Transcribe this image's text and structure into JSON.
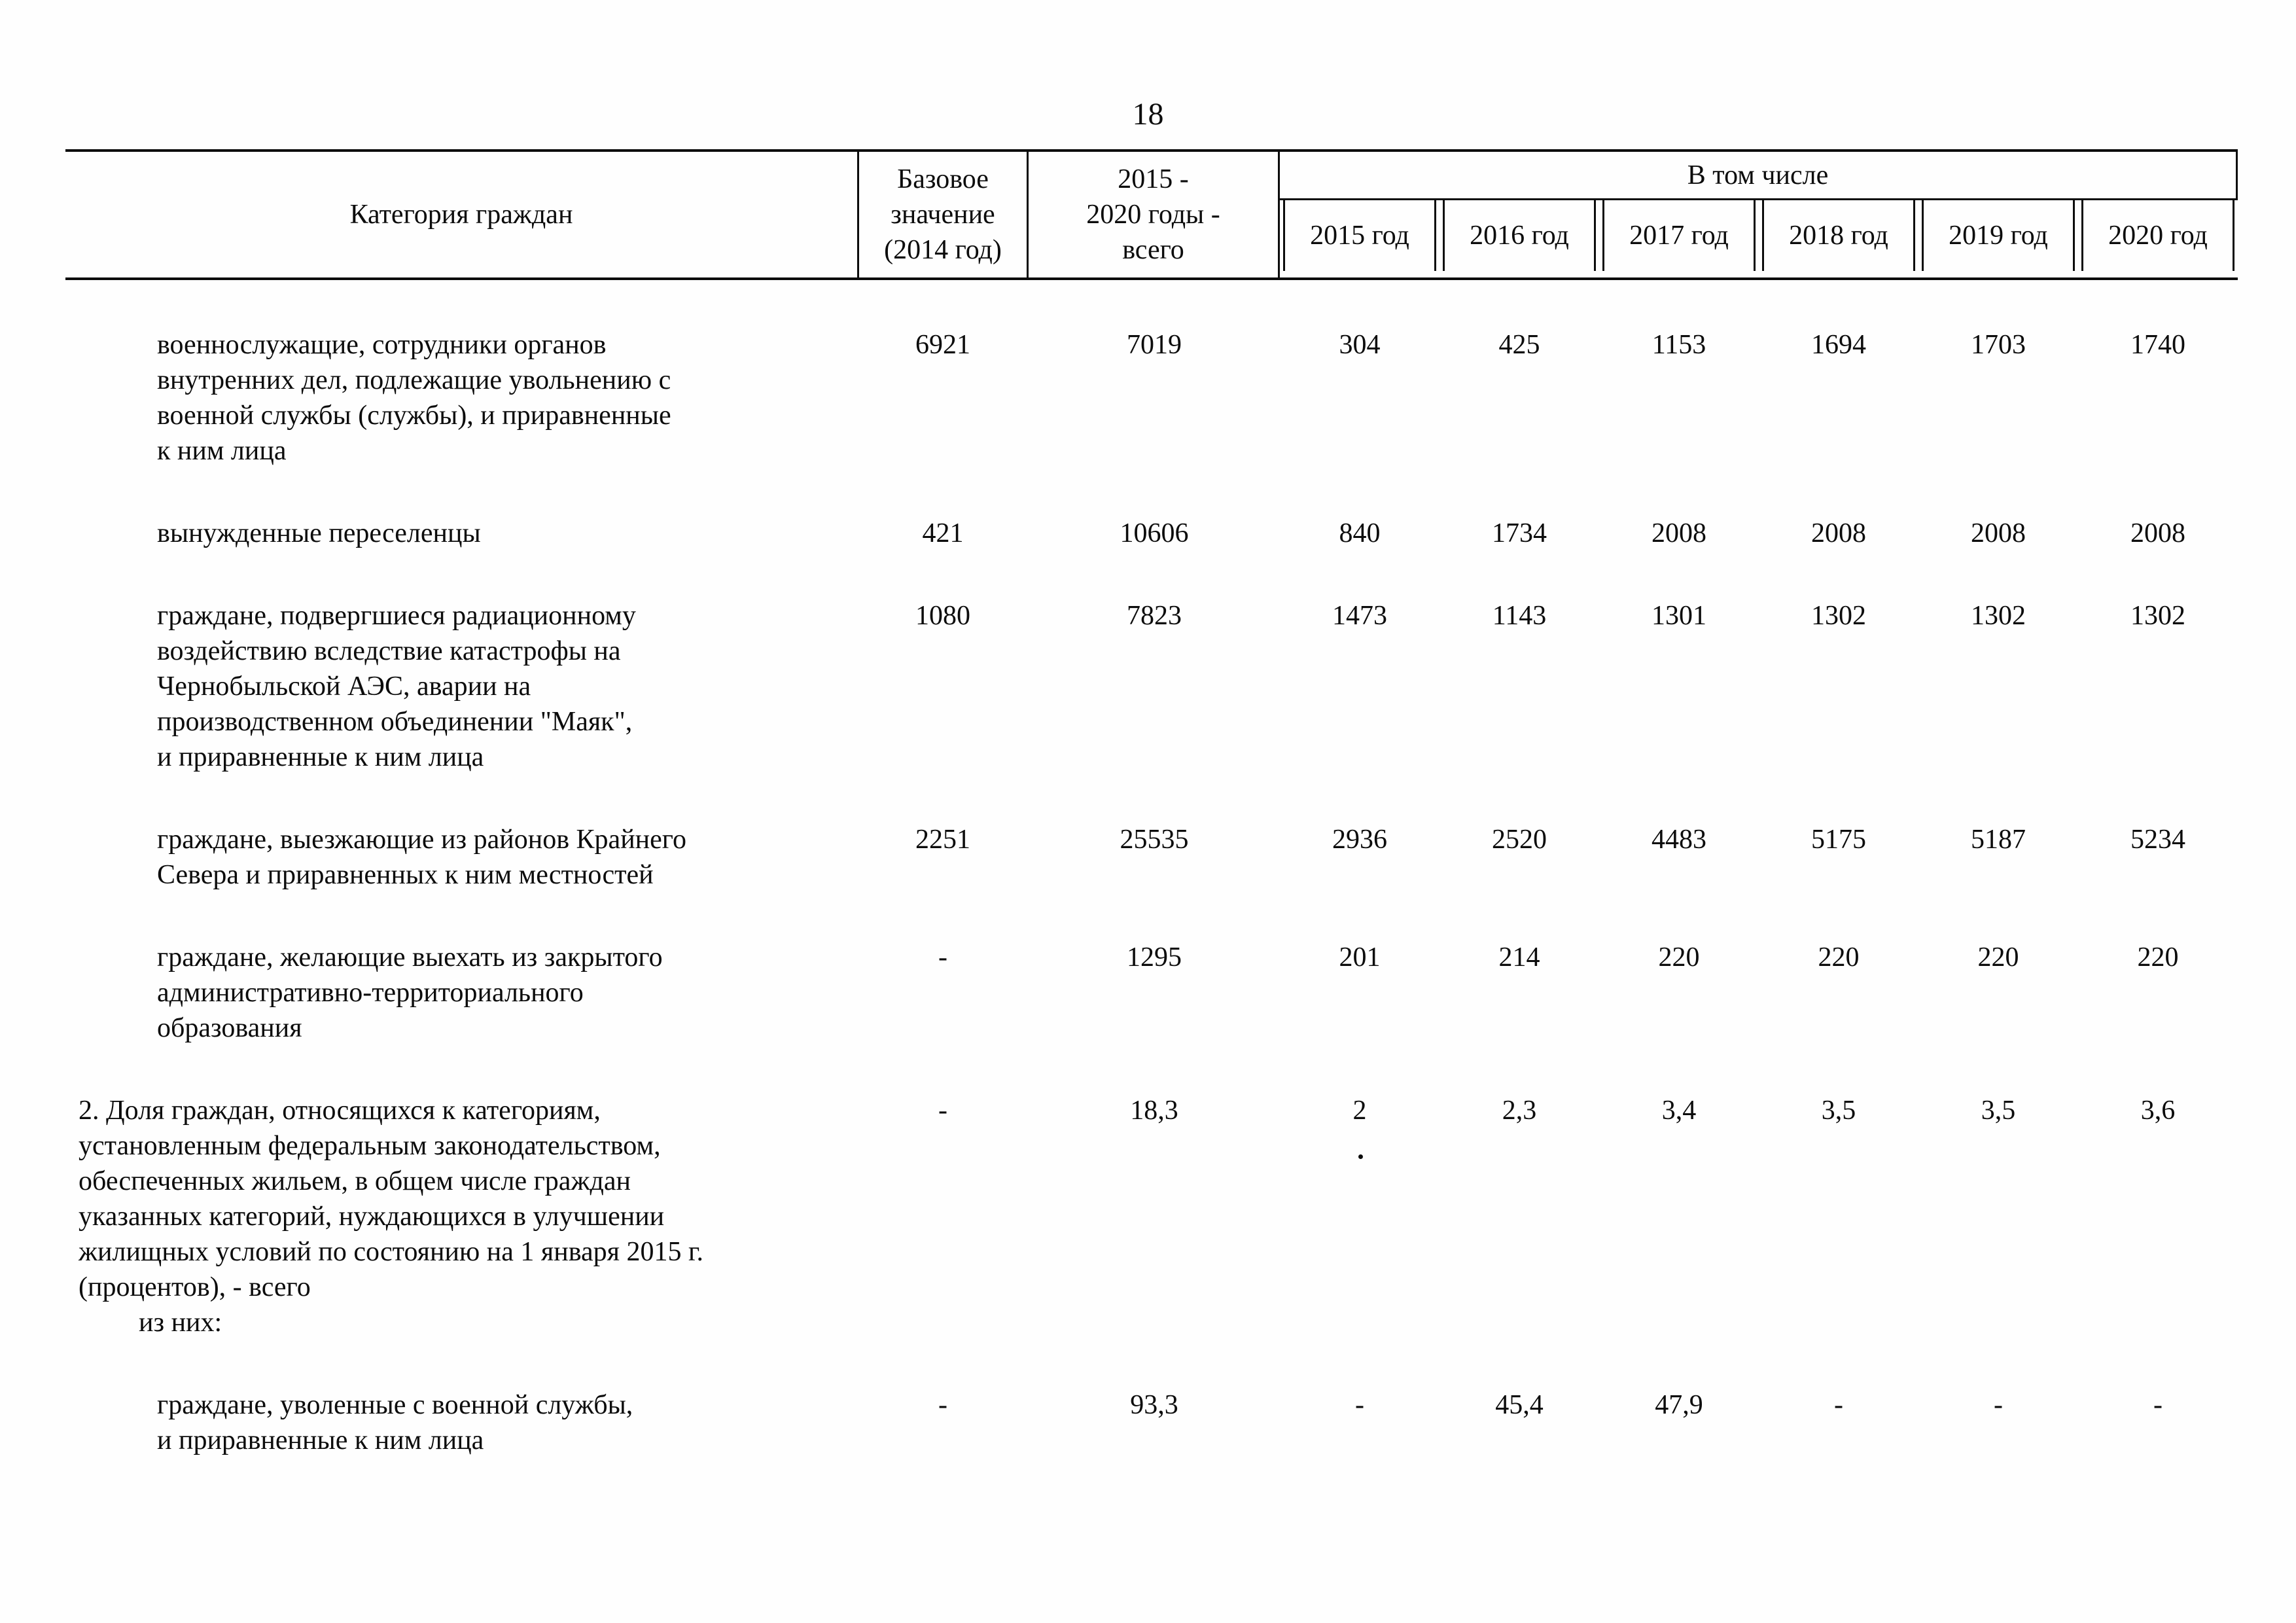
{
  "page": {
    "number": "18"
  },
  "table": {
    "header": {
      "category": "Категория граждан",
      "base_value": "Базовое\nзначение\n(2014 год)",
      "total": "2015 -\n2020 годы -\nвсего",
      "including": "В том числе",
      "years": [
        "2015 год",
        "2016 год",
        "2017 год",
        "2018 год",
        "2019 год",
        "2020 год"
      ]
    },
    "rows": [
      {
        "indent": 1,
        "category": "военнослужащие, сотрудники органов\nвнутренних дел, подлежащие увольнению с\nвоенной службы (службы), и приравненные\nк ним лица",
        "values": [
          "6921",
          "7019",
          "304",
          "425",
          "1153",
          "1694",
          "1703",
          "1740"
        ]
      },
      {
        "indent": 1,
        "category": "вынужденные переселенцы",
        "values": [
          "421",
          "10606",
          "840",
          "1734",
          "2008",
          "2008",
          "2008",
          "2008"
        ]
      },
      {
        "indent": 1,
        "category": "граждане, подвергшиеся радиационному\nвоздействию вследствие катастрофы на\nЧернобыльской АЭС, аварии на\nпроизводственном объединении \"Маяк\",\nи приравненные к ним лица",
        "values": [
          "1080",
          "7823",
          "1473",
          "1143",
          "1301",
          "1302",
          "1302",
          "1302"
        ]
      },
      {
        "indent": 1,
        "category": "граждане, выезжающие из районов Крайнего\nСевера и приравненных к ним местностей",
        "values": [
          "2251",
          "25535",
          "2936",
          "2520",
          "4483",
          "5175",
          "5187",
          "5234"
        ]
      },
      {
        "indent": 1,
        "category": "граждане, желающие выехать из закрытого\nадминистративно-территориального\nобразования",
        "values": [
          "-",
          "1295",
          "201",
          "214",
          "220",
          "220",
          "220",
          "220"
        ]
      },
      {
        "indent": 0,
        "category": "2. Доля граждан, относящихся к категориям,\nустановленным федеральным законодательством,\nобеспеченных жильем, в общем числе граждан\nуказанных категорий, нуждающихся в улучшении\nжилищных условий по состоянию на 1 января 2015 г.\n(процентов), - всего",
        "subline": "из них:",
        "values": [
          "-",
          "18,3",
          "2",
          "2,3",
          "3,4",
          "3,5",
          "3,5",
          "3,6"
        ]
      },
      {
        "indent": 1,
        "category": "граждане, уволенные с военной службы,\nи приравненные к ним лица",
        "values": [
          "-",
          "93,3",
          "-",
          "45,4",
          "47,9",
          "-",
          "-",
          "-"
        ]
      }
    ]
  }
}
